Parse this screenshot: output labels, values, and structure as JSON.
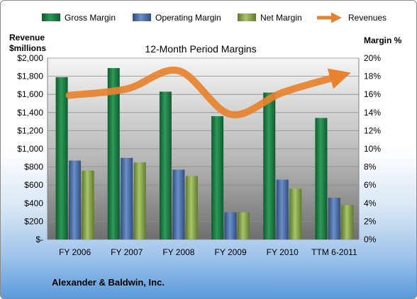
{
  "chart_data": {
    "type": "bar",
    "title": "12-Month Period Margins",
    "left_axis_label_line1": "Revenue",
    "left_axis_label_line2": "$millions",
    "right_axis_label": "Margin %",
    "categories": [
      "FY 2006",
      "FY 2007",
      "FY 2008",
      "FY 2009",
      "FY 2010",
      "TTM 6-2011"
    ],
    "left_ylim": [
      0,
      2000
    ],
    "left_ticks": [
      "$-",
      "$200",
      "$400",
      "$600",
      "$800",
      "$1,000",
      "$1,200",
      "$1,400",
      "$1,600",
      "$1,800",
      "$2,000"
    ],
    "right_ylim": [
      0,
      20
    ],
    "right_ticks": [
      "0%",
      "2%",
      "4%",
      "6%",
      "8%",
      "10%",
      "12%",
      "14%",
      "16%",
      "18%",
      "20%"
    ],
    "series": [
      {
        "name": "Gross Margin",
        "axis": "right",
        "color": "#1e7b45",
        "values": [
          17.9,
          18.9,
          16.3,
          13.6,
          16.2,
          13.4
        ]
      },
      {
        "name": "Operating Margin",
        "axis": "right",
        "color": "#4a6fa8",
        "values": [
          8.7,
          9.0,
          7.7,
          3.0,
          6.6,
          4.6
        ]
      },
      {
        "name": "Net Margin",
        "axis": "right",
        "color": "#8ca44c",
        "values": [
          7.6,
          8.5,
          7.0,
          3.0,
          5.6,
          3.8
        ]
      },
      {
        "name": "Revenues",
        "axis": "left",
        "type": "line",
        "color": "#e8822e",
        "values": [
          1590,
          1660,
          1860,
          1380,
          1620,
          1800
        ]
      }
    ],
    "legend_position": "top",
    "grid": true,
    "company": "Alexander & Baldwin, Inc."
  }
}
